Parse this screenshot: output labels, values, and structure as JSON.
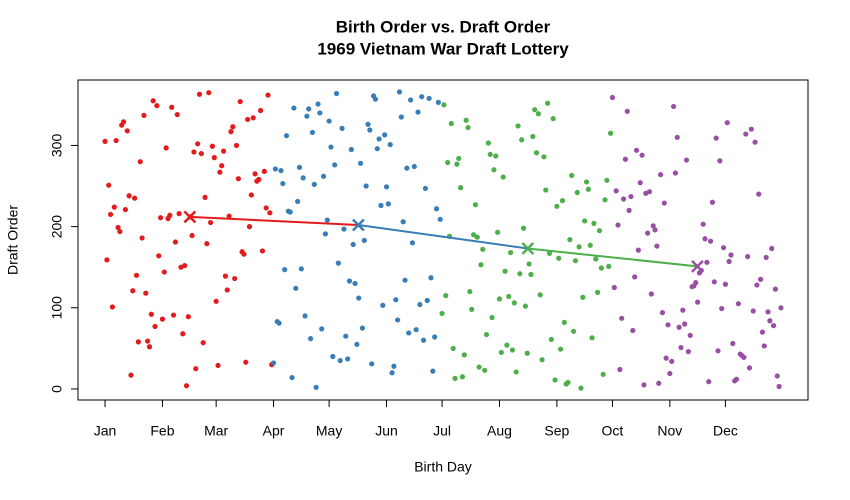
{
  "chart_data": {
    "type": "scatter",
    "title": "Birth Order vs. Draft Order",
    "subtitle": "1969 Vietnam War Draft Lottery",
    "x_label": "Birth Day",
    "y_label": "Draft Order",
    "xlim": [
      -13.6,
      380.6
    ],
    "ylim": [
      -13.6,
      380.6
    ],
    "xticks": [
      {
        "value": 1,
        "label": "Jan"
      },
      {
        "value": 32,
        "label": "Feb"
      },
      {
        "value": 61,
        "label": "Mar"
      },
      {
        "value": 92,
        "label": "Apr"
      },
      {
        "value": 122,
        "label": "May"
      },
      {
        "value": 153,
        "label": "Jun"
      },
      {
        "value": 183,
        "label": "Jul"
      },
      {
        "value": 214,
        "label": "Aug"
      },
      {
        "value": 245,
        "label": "Sep"
      },
      {
        "value": 275,
        "label": "Oct"
      },
      {
        "value": 306,
        "label": "Nov"
      },
      {
        "value": 336,
        "label": "Dec"
      }
    ],
    "yticks": [
      0,
      100,
      200,
      300
    ],
    "series": [
      {
        "color": "#e41a1c",
        "x": [
          1,
          2,
          3,
          4,
          5,
          6,
          7,
          8,
          9,
          10,
          11,
          12,
          13,
          14,
          15,
          16,
          17,
          18,
          19,
          20,
          21,
          22,
          23,
          24,
          25,
          26,
          27,
          28,
          29,
          30,
          31,
          32,
          33,
          34,
          35,
          36,
          37,
          38,
          39,
          40,
          41,
          42,
          43,
          44,
          45,
          46,
          47,
          48,
          49,
          50,
          51,
          52,
          53,
          54,
          55,
          56,
          57,
          58,
          59,
          60,
          61,
          62,
          63,
          64,
          65,
          66,
          67,
          68,
          69,
          70,
          71,
          72,
          73,
          74,
          75,
          76,
          77,
          78,
          79,
          80,
          81,
          82,
          83,
          84,
          85,
          86,
          87,
          88,
          89,
          90,
          91
        ],
        "values": [
          305,
          159,
          251,
          215,
          101,
          224,
          306,
          199,
          194,
          325,
          329,
          221,
          318,
          238,
          17,
          121,
          235,
          140,
          58,
          280,
          186,
          337,
          118,
          59,
          52,
          92,
          355,
          77,
          349,
          164,
          211,
          86,
          144,
          297,
          210,
          214,
          347,
          91,
          181,
          338,
          216,
          150,
          68,
          152,
          4,
          89,
          212,
          189,
          292,
          25,
          302,
          363,
          290,
          57,
          236,
          179,
          365,
          205,
          299,
          285,
          108,
          29,
          267,
          275,
          293,
          139,
          122,
          213,
          317,
          323,
          136,
          300,
          259,
          354,
          169,
          166,
          33,
          332,
          200,
          239,
          334,
          265,
          256,
          258,
          343,
          170,
          268,
          223,
          362,
          217,
          30
        ],
        "mean": {
          "x": 46.8,
          "y": 212
        }
      },
      {
        "color": "#377eb8",
        "x": [
          92,
          93,
          94,
          95,
          96,
          97,
          98,
          99,
          100,
          101,
          102,
          103,
          104,
          105,
          106,
          107,
          108,
          109,
          110,
          111,
          112,
          113,
          114,
          115,
          116,
          117,
          118,
          119,
          120,
          121,
          122,
          123,
          124,
          125,
          126,
          127,
          128,
          129,
          130,
          131,
          132,
          133,
          134,
          135,
          136,
          137,
          138,
          139,
          140,
          141,
          142,
          143,
          144,
          145,
          146,
          147,
          148,
          149,
          150,
          151,
          152,
          153,
          154,
          155,
          156,
          157,
          158,
          159,
          160,
          161,
          162,
          163,
          164,
          165,
          166,
          167,
          168,
          169,
          170,
          171,
          172,
          173,
          174,
          175,
          176,
          177,
          178,
          179,
          180,
          181,
          182
        ],
        "values": [
          32,
          271,
          83,
          81,
          269,
          253,
          147,
          312,
          219,
          218,
          14,
          346,
          124,
          231,
          273,
          148,
          260,
          90,
          336,
          345,
          62,
          316,
          252,
          2,
          351,
          340,
          74,
          262,
          191,
          208,
          330,
          298,
          40,
          276,
          364,
          155,
          35,
          321,
          197,
          65,
          37,
          133,
          295,
          178,
          130,
          55,
          112,
          278,
          75,
          183,
          250,
          326,
          319,
          31,
          361,
          357,
          296,
          308,
          226,
          103,
          313,
          249,
          228,
          301,
          20,
          28,
          110,
          85,
          366,
          335,
          206,
          134,
          272,
          69,
          356,
          180,
          274,
          73,
          341,
          104,
          360,
          60,
          247,
          109,
          358,
          137,
          22,
          64,
          222,
          353,
          209
        ],
        "mean": {
          "x": 137.8,
          "y": 202
        }
      },
      {
        "color": "#4daf4a",
        "x": [
          183,
          184,
          185,
          186,
          187,
          188,
          189,
          190,
          191,
          192,
          193,
          194,
          195,
          196,
          197,
          198,
          199,
          200,
          201,
          202,
          203,
          204,
          205,
          206,
          207,
          208,
          209,
          210,
          211,
          212,
          213,
          214,
          215,
          216,
          217,
          218,
          219,
          220,
          221,
          222,
          223,
          224,
          225,
          226,
          227,
          228,
          229,
          230,
          231,
          232,
          233,
          234,
          235,
          236,
          237,
          238,
          239,
          240,
          241,
          242,
          243,
          244,
          245,
          246,
          247,
          248,
          249,
          250,
          251,
          252,
          253,
          254,
          255,
          256,
          257,
          258,
          259,
          260,
          261,
          262,
          263,
          264,
          265,
          266,
          267,
          268,
          269,
          270,
          271,
          272,
          273,
          274
        ],
        "values": [
          93,
          350,
          115,
          279,
          188,
          327,
          50,
          13,
          277,
          284,
          248,
          15,
          42,
          331,
          322,
          120,
          98,
          190,
          227,
          187,
          27,
          153,
          172,
          23,
          67,
          303,
          289,
          88,
          270,
          287,
          193,
          111,
          45,
          261,
          145,
          54,
          114,
          168,
          48,
          106,
          21,
          324,
          142,
          307,
          198,
          102,
          44,
          154,
          141,
          311,
          344,
          291,
          339,
          116,
          36,
          286,
          245,
          352,
          167,
          61,
          333,
          11,
          225,
          161,
          49,
          232,
          82,
          6,
          8,
          184,
          263,
          71,
          158,
          242,
          175,
          1,
          113,
          207,
          255,
          246,
          177,
          63,
          204,
          160,
          119,
          195,
          149,
          18,
          233,
          257,
          151,
          315
        ],
        "mean": {
          "x": 229.3,
          "y": 173
        }
      },
      {
        "color": "#984ea3",
        "x": [
          275,
          276,
          277,
          278,
          279,
          280,
          281,
          282,
          283,
          284,
          285,
          286,
          287,
          288,
          289,
          290,
          291,
          292,
          293,
          294,
          295,
          296,
          297,
          298,
          299,
          300,
          301,
          302,
          303,
          304,
          305,
          306,
          307,
          308,
          309,
          310,
          311,
          312,
          313,
          314,
          315,
          316,
          317,
          318,
          319,
          320,
          321,
          322,
          323,
          324,
          325,
          326,
          327,
          328,
          329,
          330,
          331,
          332,
          333,
          334,
          335,
          336,
          337,
          338,
          339,
          340,
          341,
          342,
          343,
          344,
          345,
          346,
          347,
          348,
          349,
          350,
          351,
          352,
          353,
          354,
          355,
          356,
          357,
          358,
          359,
          360,
          361,
          362,
          363,
          364,
          365,
          366
        ],
        "values": [
          359,
          125,
          244,
          202,
          24,
          87,
          234,
          283,
          342,
          220,
          237,
          72,
          138,
          294,
          171,
          254,
          288,
          5,
          241,
          192,
          243,
          117,
          201,
          196,
          176,
          7,
          264,
          94,
          229,
          38,
          79,
          19,
          34,
          348,
          266,
          310,
          76,
          51,
          97,
          80,
          282,
          46,
          66,
          126,
          127,
          131,
          107,
          143,
          146,
          203,
          185,
          156,
          9,
          182,
          230,
          132,
          309,
          47,
          281,
          99,
          174,
          129,
          328,
          157,
          165,
          56,
          10,
          12,
          105,
          43,
          41,
          39,
          314,
          163,
          26,
          320,
          96,
          304,
          128,
          240,
          135,
          70,
          53,
          162,
          95,
          84,
          173,
          78,
          123,
          16,
          3,
          100
        ],
        "mean": {
          "x": 320.9,
          "y": 151
        }
      }
    ]
  }
}
